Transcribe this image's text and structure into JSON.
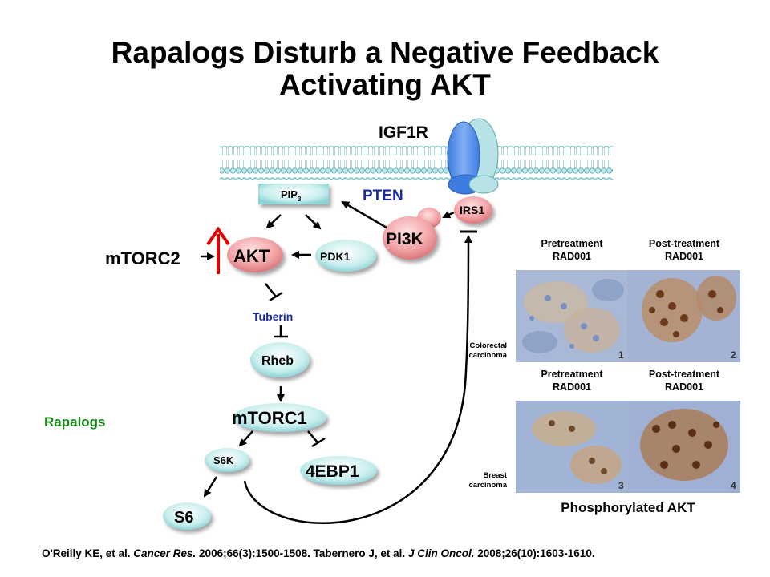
{
  "title_line1": "Rapalogs Disturb a Negative Feedback",
  "title_line2": "Activating AKT",
  "nodes": {
    "igf1r": "IGF1R",
    "pip3": "PIP",
    "pip3_sub": "3",
    "pten": "PTEN",
    "irs1": "IRS1",
    "pi3k": "PI3K",
    "akt": "AKT",
    "pdk1": "PDK1",
    "mtorc2": "mTORC2",
    "tuberin": "Tuberin",
    "rheb": "Rheb",
    "mtorc1": "mTORC1",
    "s6k": "S6K",
    "ebp1": "4EBP1",
    "s6": "S6",
    "rapalogs": "Rapalogs"
  },
  "colors": {
    "membrane": "#8fd3d6",
    "cyan_node": "#bfe9ea",
    "pink_node": "#f2a3a6",
    "receptor_blue": "#4a86e8",
    "receptor_light": "#b7e3e6",
    "up_arrow": "#e00000",
    "pten": "#1a2aa0",
    "tuberin": "#1a2aa0",
    "rapalogs": "#1a8a1a"
  },
  "panels": {
    "pre_label": "Pretreatment\nRAD001",
    "post_label": "Post-treatment\nRAD001",
    "colorectal": "Colorectal\ncarcinoma",
    "breast": "Breast\ncarcinoma",
    "caption": "Phosphorylated AKT",
    "num1": "1",
    "num2": "2",
    "num3": "3",
    "num4": "4"
  },
  "citation": {
    "part1": "O'Reilly KE, et al. ",
    "journal1": "Cancer Res.",
    "part2": " 2006;66(3):1500-1508. Tabernero J, et al. ",
    "journal2": "J Clin Oncol.",
    "part3": " 2008;26(10):1603-1610."
  }
}
